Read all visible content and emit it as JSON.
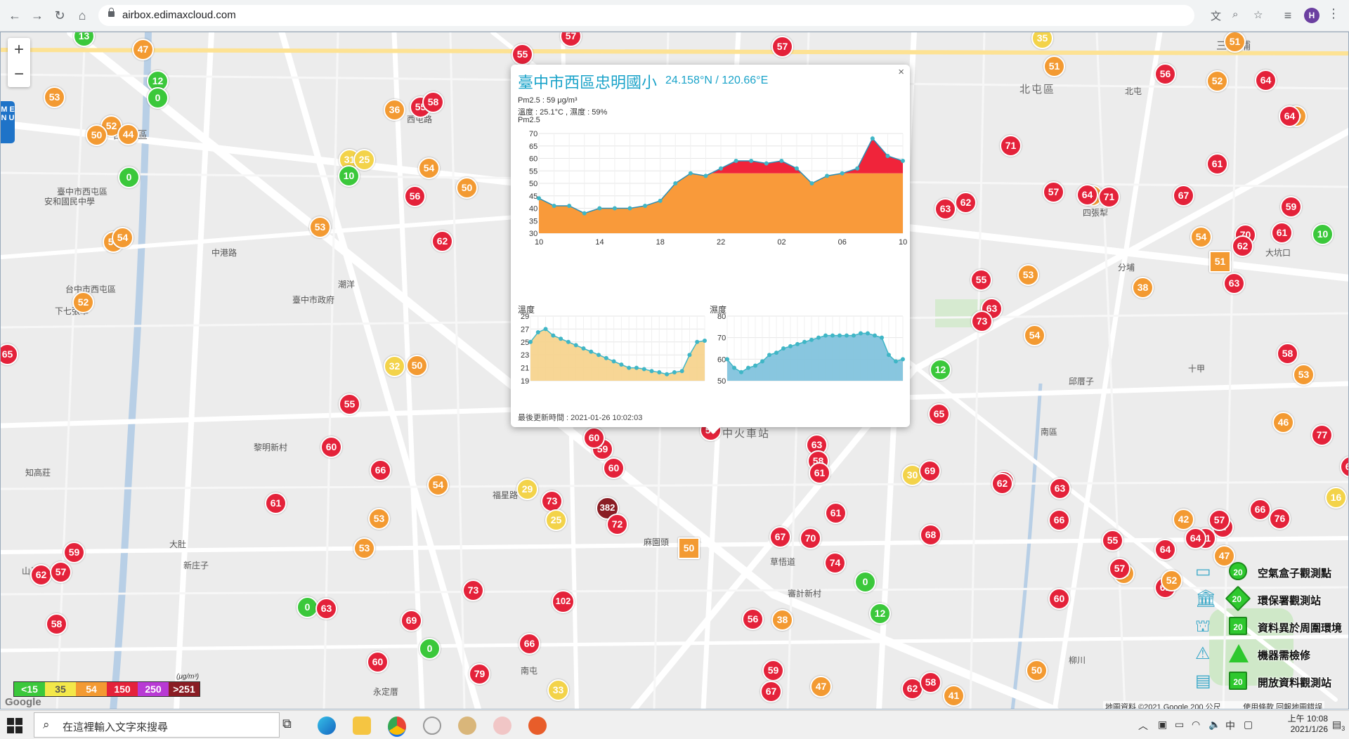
{
  "browser": {
    "url": "airbox.edimaxcloud.com",
    "profile_initial": "H"
  },
  "map": {
    "zoom_in": "+",
    "zoom_out": "−",
    "menu_label": "M E N U",
    "place_labels": [
      "臺中市西屯區",
      "安和國民中學",
      "西屯區",
      "臺中市政府",
      "大墩國小",
      "潮洋",
      "下七張犁",
      "台中市西屯區",
      "黎明新村",
      "知高莊",
      "新庄子",
      "山子",
      "福星路",
      "西屯路",
      "中港路",
      "大肚",
      "北屯區",
      "三分埔",
      "四張犁",
      "北屯",
      "大坑口",
      "分埔",
      "邱厝子",
      "十甲",
      "台中火車站",
      "麻園頭",
      "草悟道",
      "審計新村",
      "南屯",
      "永定厝",
      "柳川",
      "中區",
      "南區"
    ],
    "google_attribution": "地圖資料 ©2021 Google   200 公尺 ▁▁▁   使用條款   回報地圖錯誤",
    "google_logo": "Google"
  },
  "markers": [
    {
      "v": "13",
      "c": "#3bc83b"
    },
    {
      "v": "47",
      "c": "#f39a32"
    },
    {
      "v": "12",
      "c": "#3bc83b"
    },
    {
      "v": "0",
      "c": "#3bc83b"
    },
    {
      "v": "53",
      "c": "#f39a32"
    },
    {
      "v": "52",
      "c": "#f39a32"
    },
    {
      "v": "50",
      "c": "#f39a32"
    },
    {
      "v": "44",
      "c": "#f39a32"
    },
    {
      "v": "0",
      "c": "#3bc83b"
    },
    {
      "v": "53",
      "c": "#f39a32"
    },
    {
      "v": "54",
      "c": "#f39a32"
    },
    {
      "v": "55",
      "c": "#e4223a"
    },
    {
      "v": "58",
      "c": "#e4223a"
    },
    {
      "v": "36",
      "c": "#f39a32"
    },
    {
      "v": "31",
      "c": "#f3d34a"
    },
    {
      "v": "25",
      "c": "#f3d34a"
    },
    {
      "v": "10",
      "c": "#3bc83b"
    },
    {
      "v": "54",
      "c": "#f39a32"
    },
    {
      "v": "50",
      "c": "#f39a32"
    },
    {
      "v": "56",
      "c": "#e4223a"
    },
    {
      "v": "53",
      "c": "#f39a32"
    },
    {
      "v": "62",
      "c": "#e4223a"
    },
    {
      "v": "55",
      "c": "#e4223a"
    },
    {
      "v": "57",
      "c": "#e4223a"
    },
    {
      "v": "57",
      "c": "#e4223a"
    },
    {
      "v": "32",
      "c": "#f3d34a"
    },
    {
      "v": "50",
      "c": "#f39a32"
    },
    {
      "v": "55",
      "c": "#e4223a"
    },
    {
      "v": "60",
      "c": "#e4223a"
    },
    {
      "v": "66",
      "c": "#e4223a"
    },
    {
      "v": "61",
      "c": "#e4223a"
    },
    {
      "v": "54",
      "c": "#f39a32"
    },
    {
      "v": "53",
      "c": "#f39a32"
    },
    {
      "v": "53",
      "c": "#f39a32"
    },
    {
      "v": "59",
      "c": "#e4223a"
    },
    {
      "v": "62",
      "c": "#e4223a"
    },
    {
      "v": "57",
      "c": "#e4223a"
    },
    {
      "v": "58",
      "c": "#e4223a"
    },
    {
      "v": "0",
      "c": "#3bc83b"
    },
    {
      "v": "63",
      "c": "#e4223a"
    },
    {
      "v": "69",
      "c": "#e4223a"
    },
    {
      "v": "0",
      "c": "#3bc83b"
    },
    {
      "v": "60",
      "c": "#e4223a"
    },
    {
      "v": "79",
      "c": "#e4223a"
    },
    {
      "v": "73",
      "c": "#e4223a"
    },
    {
      "v": "59",
      "c": "#e4223a"
    },
    {
      "v": "60",
      "c": "#e4223a"
    },
    {
      "v": "73",
      "c": "#e4223a"
    },
    {
      "v": "25",
      "c": "#f3d34a"
    },
    {
      "v": "29",
      "c": "#f3d34a"
    },
    {
      "v": "382",
      "c": "#8a1d24"
    },
    {
      "v": "72",
      "c": "#e4223a"
    },
    {
      "v": "102",
      "c": "#e4223a"
    },
    {
      "v": "66",
      "c": "#e4223a"
    },
    {
      "v": "33",
      "c": "#f3d34a"
    },
    {
      "v": "45",
      "c": "#f39a32"
    },
    {
      "v": "60",
      "c": "#e4223a"
    },
    {
      "v": "59",
      "c": "#e4223a"
    },
    {
      "v": "50",
      "c": "#f39a32"
    },
    {
      "v": "67",
      "c": "#e4223a"
    },
    {
      "v": "70",
      "c": "#e4223a"
    },
    {
      "v": "74",
      "c": "#e4223a"
    },
    {
      "v": "56",
      "c": "#e4223a"
    },
    {
      "v": "38",
      "c": "#f39a32"
    },
    {
      "v": "59",
      "c": "#e4223a"
    },
    {
      "v": "67",
      "c": "#e4223a"
    },
    {
      "v": "47",
      "c": "#f39a32"
    },
    {
      "v": "63",
      "c": "#e4223a"
    },
    {
      "v": "58",
      "c": "#e4223a"
    },
    {
      "v": "61",
      "c": "#e4223a"
    },
    {
      "v": "0",
      "c": "#3bc83b"
    },
    {
      "v": "12",
      "c": "#3bc83b"
    },
    {
      "v": "62",
      "c": "#e4223a"
    },
    {
      "v": "58",
      "c": "#e4223a"
    },
    {
      "v": "41",
      "c": "#f39a32"
    },
    {
      "v": "61",
      "c": "#e4223a"
    },
    {
      "v": "65",
      "c": "#e4223a"
    },
    {
      "v": "12",
      "c": "#3bc83b"
    },
    {
      "v": "30",
      "c": "#f3d34a"
    },
    {
      "v": "69",
      "c": "#e4223a"
    },
    {
      "v": "68",
      "c": "#e4223a"
    },
    {
      "v": "55",
      "c": "#e4223a"
    },
    {
      "v": "63",
      "c": "#e4223a"
    },
    {
      "v": "73",
      "c": "#e4223a"
    },
    {
      "v": "53",
      "c": "#f39a32"
    },
    {
      "v": "54",
      "c": "#f39a32"
    },
    {
      "v": "70",
      "c": "#e4223a"
    },
    {
      "v": "62",
      "c": "#e4223a"
    },
    {
      "v": "63",
      "c": "#e4223a"
    },
    {
      "v": "66",
      "c": "#e4223a"
    },
    {
      "v": "60",
      "c": "#e4223a"
    },
    {
      "v": "50",
      "c": "#f39a32"
    },
    {
      "v": "71",
      "c": "#e4223a"
    },
    {
      "v": "62",
      "c": "#e4223a"
    },
    {
      "v": "63",
      "c": "#e4223a"
    },
    {
      "v": "57",
      "c": "#e4223a"
    },
    {
      "v": "38",
      "c": "#f39a32"
    },
    {
      "v": "71",
      "c": "#e4223a"
    },
    {
      "v": "64",
      "c": "#e4223a"
    },
    {
      "v": "56",
      "c": "#e4223a"
    },
    {
      "v": "35",
      "c": "#f3d34a"
    },
    {
      "v": "51",
      "c": "#f39a32"
    },
    {
      "v": "51",
      "c": "#f39a32"
    },
    {
      "v": "52",
      "c": "#f39a32"
    },
    {
      "v": "64",
      "c": "#e4223a"
    },
    {
      "v": "39",
      "c": "#f39a32"
    },
    {
      "v": "64",
      "c": "#e4223a"
    },
    {
      "v": "61",
      "c": "#e4223a"
    },
    {
      "v": "67",
      "c": "#e4223a"
    },
    {
      "v": "54",
      "c": "#f39a32"
    },
    {
      "v": "70",
      "c": "#e4223a"
    },
    {
      "v": "10",
      "c": "#3bc83b"
    },
    {
      "v": "61",
      "c": "#e4223a"
    },
    {
      "v": "59",
      "c": "#e4223a"
    },
    {
      "v": "51",
      "c": "#f39a32"
    },
    {
      "v": "62",
      "c": "#e4223a"
    },
    {
      "v": "38",
      "c": "#f39a32"
    },
    {
      "v": "63",
      "c": "#e4223a"
    },
    {
      "v": "58",
      "c": "#e4223a"
    },
    {
      "v": "53",
      "c": "#f39a32"
    },
    {
      "v": "46",
      "c": "#f39a32"
    },
    {
      "v": "42",
      "c": "#f39a32"
    },
    {
      "v": "77",
      "c": "#e4223a"
    },
    {
      "v": "68",
      "c": "#e4223a"
    },
    {
      "v": "66",
      "c": "#e4223a"
    },
    {
      "v": "16",
      "c": "#f3d34a"
    },
    {
      "v": "76",
      "c": "#e4223a"
    },
    {
      "v": "57",
      "c": "#e4223a"
    },
    {
      "v": "64",
      "c": "#e4223a"
    },
    {
      "v": "71",
      "c": "#e4223a"
    },
    {
      "v": "61",
      "c": "#e4223a"
    },
    {
      "v": "50",
      "c": "#f39a32"
    },
    {
      "v": "52",
      "c": "#f39a32"
    },
    {
      "v": "47",
      "c": "#f39a32"
    },
    {
      "v": "57",
      "c": "#e4223a"
    },
    {
      "v": "55",
      "c": "#e4223a"
    },
    {
      "v": "57",
      "c": "#e4223a"
    },
    {
      "v": "64",
      "c": "#e4223a"
    },
    {
      "v": "52",
      "c": "#f39a32"
    },
    {
      "v": "65",
      "c": "#e4223a"
    }
  ],
  "popup": {
    "title": "臺中市西區忠明國小",
    "coords": "24.158°N / 120.66°E",
    "pm_line": "Pm2.5 : 59 μg/m³",
    "temp_hum_line": "溫度 : 25.1°C , 濕度 : 59%",
    "pm_chart_title": "Pm2.5",
    "temp_chart_title": "溫度",
    "hum_chart_title": "濕度",
    "updated": "最後更新時間 : 2021-01-26 10:02:03",
    "close": "×",
    "current_value": "59"
  },
  "chart_data": [
    {
      "type": "area",
      "title": "Pm2.5",
      "x": [
        "10",
        "",
        "",
        "",
        "14",
        "",
        "",
        "",
        "18",
        "",
        "",
        "",
        "22",
        "",
        "",
        "",
        "02",
        "",
        "",
        "",
        "06",
        "",
        "",
        "",
        "10"
      ],
      "x_ticks": [
        "10",
        "14",
        "18",
        "22",
        "02",
        "06",
        "10"
      ],
      "ylim": [
        30,
        70
      ],
      "y_ticks": [
        30,
        35,
        40,
        45,
        50,
        55,
        60,
        65,
        70
      ],
      "values": [
        44,
        41,
        41,
        38,
        40,
        40,
        40,
        41,
        43,
        50,
        54,
        53,
        56,
        59,
        59,
        58,
        59,
        56,
        50,
        53,
        54,
        56,
        68,
        61,
        59
      ],
      "thresholds": [
        {
          "value": 54,
          "color": "#f99a3a"
        },
        {
          "value": 70,
          "color": "#f0243a"
        }
      ]
    },
    {
      "type": "area",
      "title": "溫度",
      "ylim": [
        19,
        29
      ],
      "y_ticks": [
        19,
        21,
        23,
        25,
        27,
        29
      ],
      "values": [
        25,
        26.5,
        27,
        26,
        25.5,
        25,
        24.5,
        24,
        23.5,
        23,
        22.5,
        22,
        21.5,
        21,
        21,
        20.8,
        20.5,
        20.3,
        20,
        20.3,
        20.5,
        23,
        25,
        25.2
      ],
      "color": "#f6d28a"
    },
    {
      "type": "area",
      "title": "濕度",
      "ylim": [
        50,
        80
      ],
      "y_ticks": [
        50,
        60,
        70,
        80
      ],
      "values": [
        60,
        56,
        54,
        56,
        57,
        59,
        62,
        63,
        65,
        66,
        67,
        68,
        69,
        70,
        71,
        71,
        71,
        71,
        71,
        72,
        72,
        71,
        70,
        62,
        59,
        60
      ],
      "color": "#7bc0dc"
    }
  ],
  "aq_legend": {
    "cells": [
      {
        "label": "<15",
        "color": "#3bc83b"
      },
      {
        "label": "35",
        "color": "#f3e84a"
      },
      {
        "label": "54",
        "color": "#f39a32"
      },
      {
        "label": "150",
        "color": "#e4223a"
      },
      {
        "label": "250",
        "color": "#b83ad4"
      },
      {
        "label": ">251",
        "color": "#8a1d24"
      }
    ],
    "unit": "(μg/m³)"
  },
  "type_legend": {
    "sample_value": "20",
    "items": [
      {
        "label": "空氣盒子觀測點"
      },
      {
        "label": "環保署觀測站"
      },
      {
        "label": "資料異於周圍環境"
      },
      {
        "label": "機器需檢修"
      },
      {
        "label": "開放資料觀測站"
      }
    ]
  },
  "taskbar": {
    "search_placeholder": "在這裡輸入文字來搜尋",
    "ime": "中",
    "time": "上午 10:08",
    "date": "2021/1/26",
    "notif_count": "3"
  }
}
